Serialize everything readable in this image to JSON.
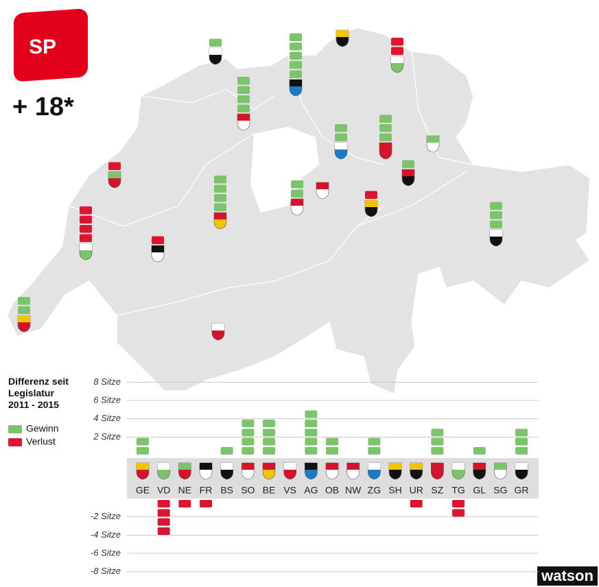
{
  "party": "SP",
  "total": "+ 18*",
  "watermark": "watson",
  "chart_data": {
    "type": "bar",
    "title": "Differenz seit Legislatur 2011 - 2015",
    "categories": [
      "GE",
      "VD",
      "NE",
      "FR",
      "BS",
      "SO",
      "BE",
      "VS",
      "AG",
      "OB",
      "NW",
      "ZG",
      "SH",
      "UR",
      "SZ",
      "TG",
      "GL",
      "SG",
      "GR"
    ],
    "values": [
      2,
      -4,
      -1,
      -1,
      1,
      4,
      4,
      0,
      5,
      2,
      0,
      2,
      0,
      -1,
      3,
      -2,
      1,
      0,
      3
    ],
    "legend": [
      {
        "name": "Gewinn",
        "color": "#7dc36b"
      },
      {
        "name": "Verlust",
        "color": "#dc1530"
      }
    ],
    "ylim": [
      -8,
      8
    ],
    "yticks": [
      {
        "value": 8,
        "label": "8 Sitze"
      },
      {
        "value": 6,
        "label": "6 Sitze"
      },
      {
        "value": 4,
        "label": "4 Sitze"
      },
      {
        "value": 2,
        "label": "2 Sitze"
      },
      {
        "value": -2,
        "label": "-2 Sitze"
      },
      {
        "value": -4,
        "label": "-4 Sitze"
      },
      {
        "value": -6,
        "label": "-6 Sitze"
      },
      {
        "value": -8,
        "label": "-8 Sitze"
      }
    ],
    "grid": true
  }
}
